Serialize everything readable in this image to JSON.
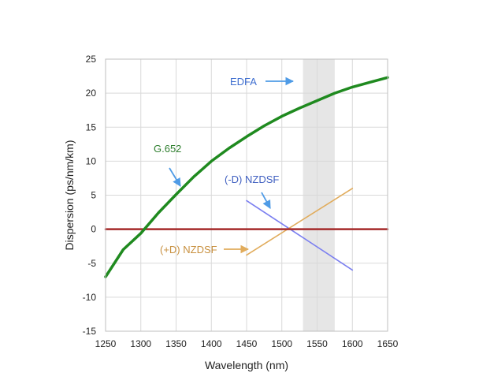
{
  "chart_data": {
    "type": "line",
    "title": "",
    "xlabel": "Wavelength (nm)",
    "ylabel": "Dispersion (ps/nm/km)",
    "xlim": [
      1250,
      1650
    ],
    "ylim": [
      -15,
      25
    ],
    "xticks": [
      1250,
      1300,
      1350,
      1400,
      1450,
      1500,
      1550,
      1600,
      1650
    ],
    "yticks": [
      -15,
      -10,
      -5,
      0,
      5,
      10,
      15,
      20,
      25
    ],
    "grid": true,
    "band": {
      "name": "EDFA",
      "x_range": [
        1530,
        1575
      ],
      "color": "#e6e6e6"
    },
    "series": [
      {
        "name": "G.652",
        "color": "#1f8a1f",
        "x": [
          1250,
          1275,
          1300,
          1325,
          1350,
          1375,
          1400,
          1425,
          1450,
          1475,
          1500,
          1525,
          1550,
          1575,
          1600,
          1625,
          1650
        ],
        "y": [
          -7.0,
          -3.0,
          -0.6,
          2.4,
          5.1,
          7.7,
          10.0,
          11.9,
          13.6,
          15.2,
          16.6,
          17.8,
          18.9,
          20.0,
          20.9,
          21.6,
          22.3
        ]
      },
      {
        "name": "(-D) NZDSF",
        "color": "#7b7ff0",
        "x": [
          1450,
          1600
        ],
        "y": [
          4.2,
          -6.0
        ]
      },
      {
        "name": "(+D) NZDSF",
        "color": "#e1ac5c",
        "x": [
          1450,
          1600
        ],
        "y": [
          -3.8,
          6.0
        ]
      },
      {
        "name": "zero",
        "color": "#a52a2a",
        "x": [
          1250,
          1650
        ],
        "y": [
          0,
          0
        ]
      }
    ],
    "annotations": [
      {
        "text": "EDFA",
        "color": "#3f6fd0",
        "arrow_color": "#4f9be6"
      },
      {
        "text": "G.652",
        "color": "#2f7f2f",
        "arrow_color": "#4f9be6"
      },
      {
        "text": "(-D) NZDSF",
        "color": "#3f5fc0",
        "arrow_color": "#4f9be6"
      },
      {
        "text": "(+D) NZDSF",
        "color": "#c8903f",
        "arrow_color": "#e1ac5c"
      }
    ]
  }
}
